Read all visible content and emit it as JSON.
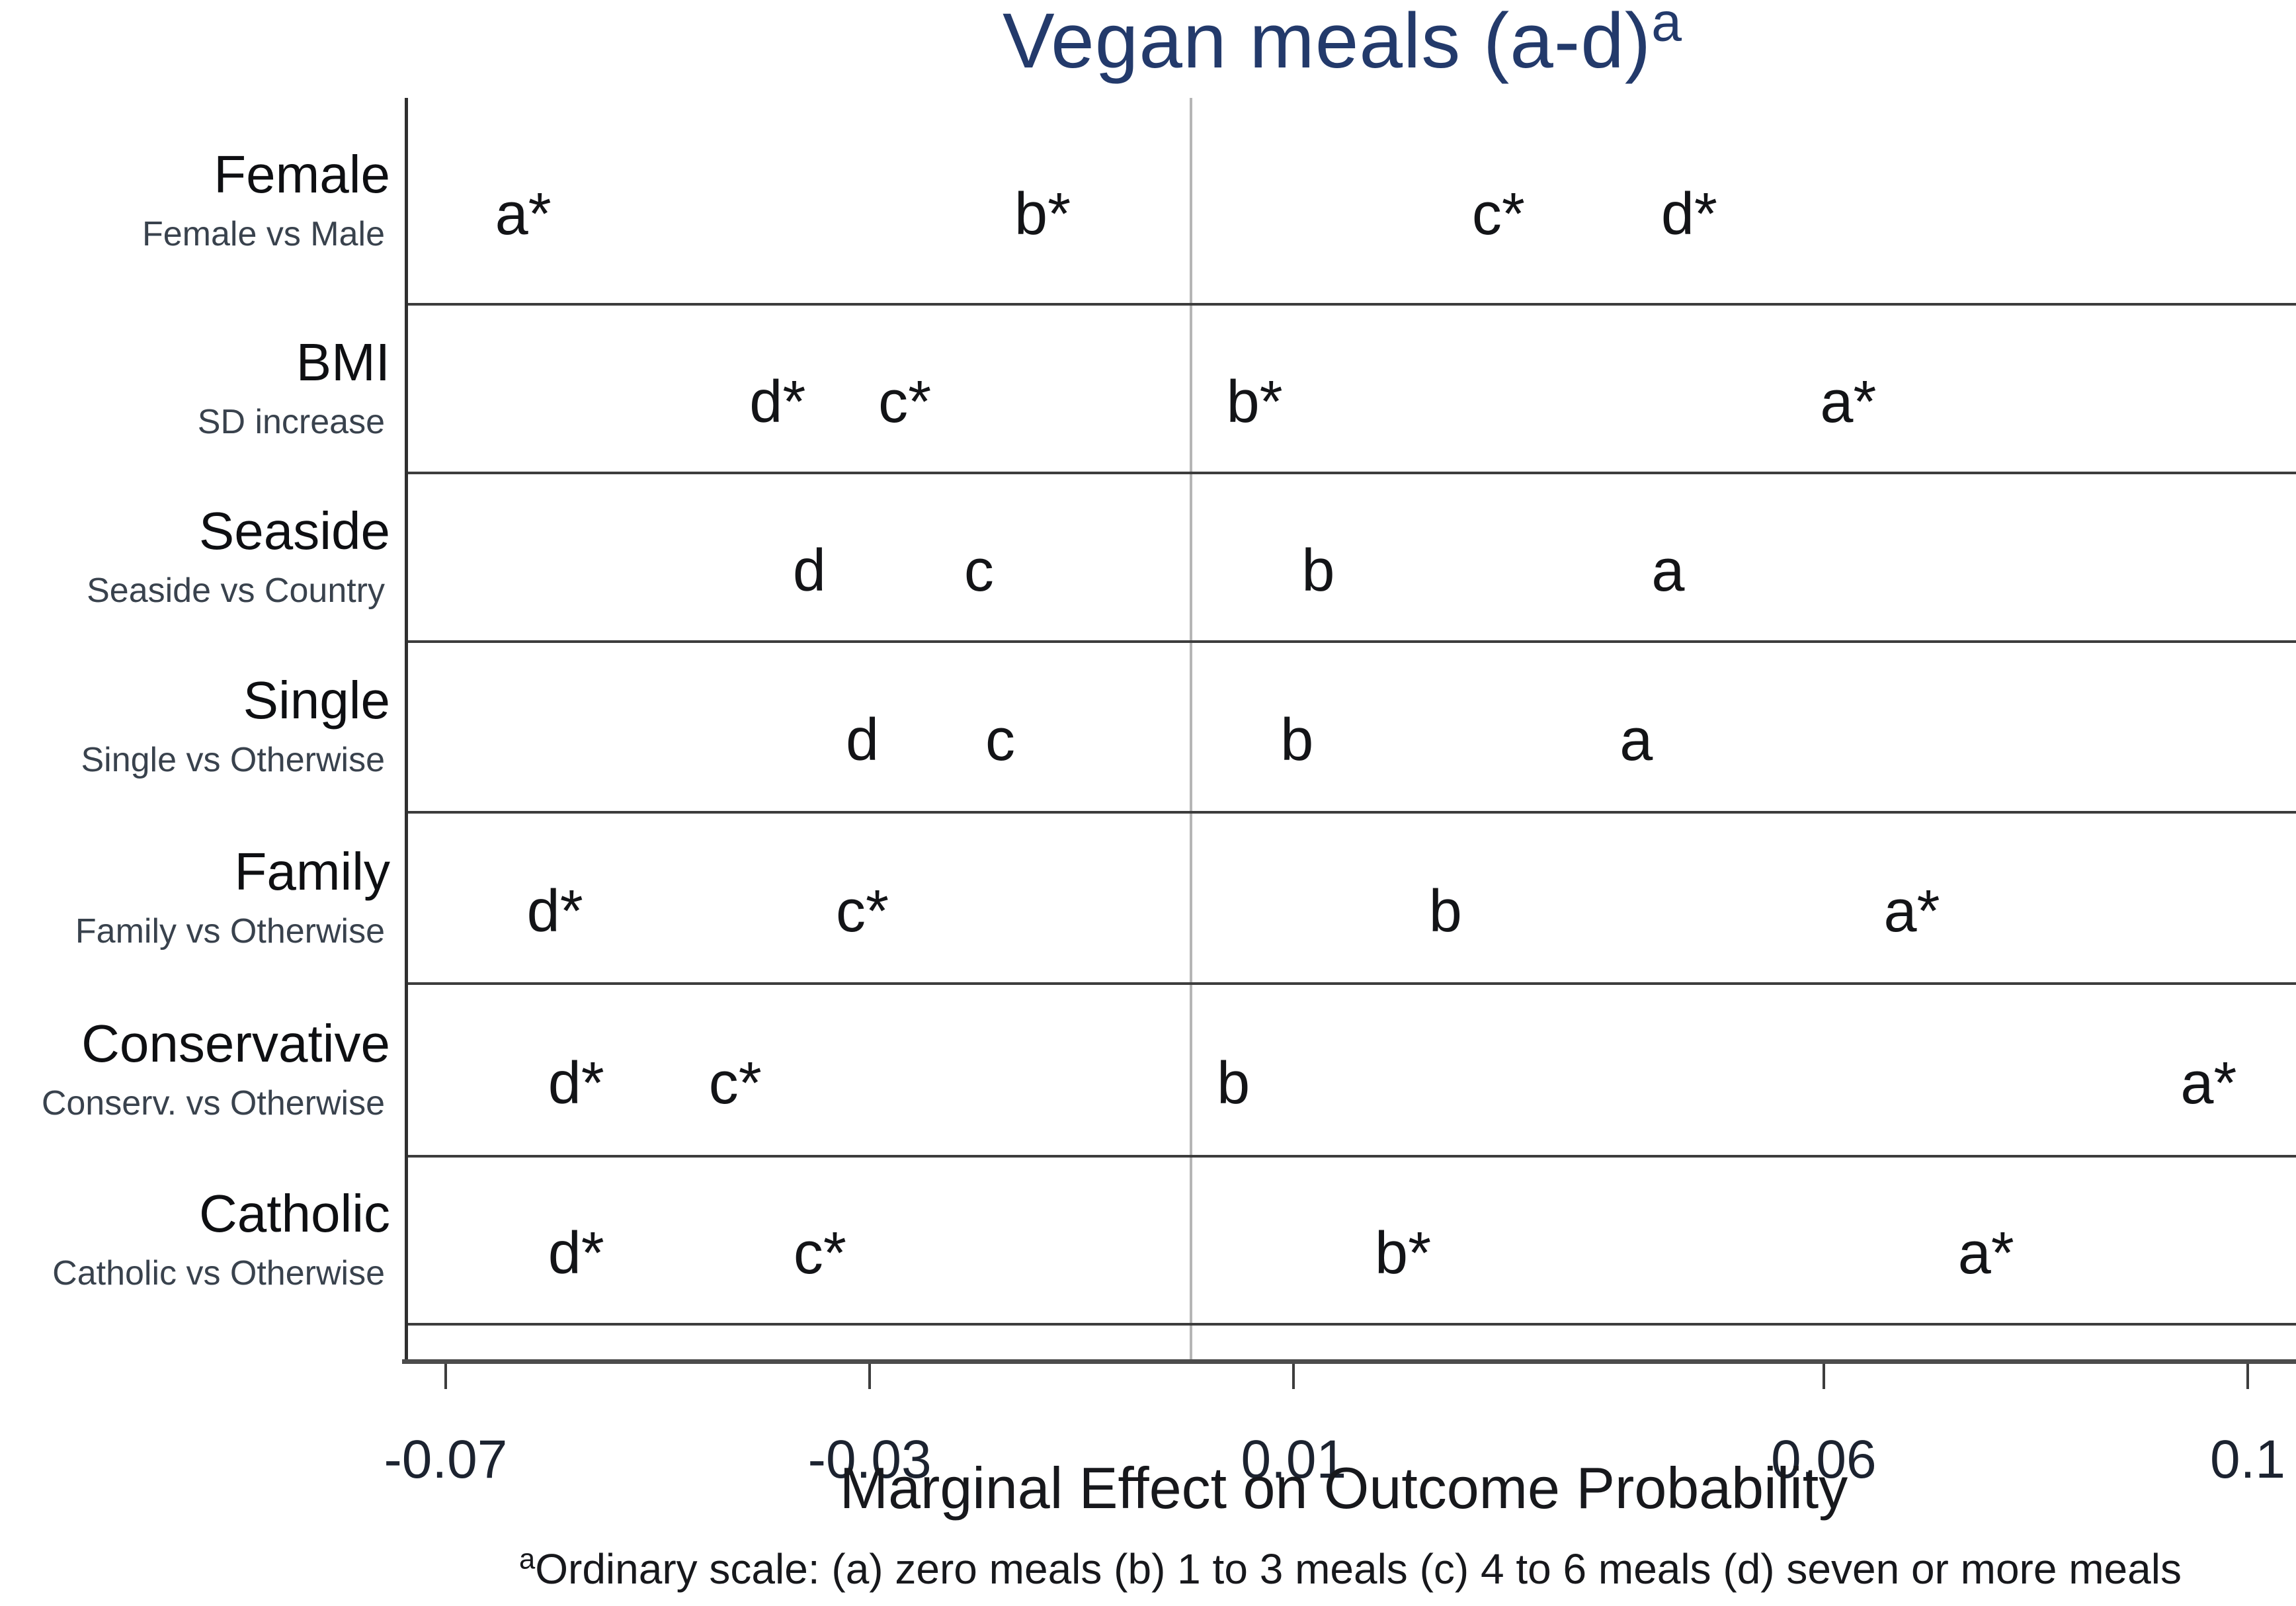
{
  "chart_data": {
    "type": "scatter",
    "title": "Vegan meals (a-d)",
    "title_superscript": "a",
    "xlabel": "Marginal Effect on Outcome Probability",
    "xlim": [
      -0.0739,
      0.1046
    ],
    "xticks": [
      -0.07,
      -0.03,
      0.01,
      0.06,
      0.1
    ],
    "xtick_labels": [
      "-0.07",
      "-0.03",
      "0.01",
      "0.06",
      "0.1"
    ],
    "reference_line_x": 0,
    "significance_marker": "*",
    "legend_position": "none",
    "grid": "row-dividers",
    "rows": [
      {
        "category": "Female",
        "contrast": "Female vs Male",
        "points": [
          {
            "label": "a",
            "sig": true,
            "x": -0.063
          },
          {
            "label": "b",
            "sig": true,
            "x": -0.014
          },
          {
            "label": "c",
            "sig": true,
            "x": 0.029
          },
          {
            "label": "d",
            "sig": true,
            "x": 0.047
          }
        ]
      },
      {
        "category": "BMI",
        "contrast": "SD increase",
        "points": [
          {
            "label": "a",
            "sig": true,
            "x": 0.062
          },
          {
            "label": "b",
            "sig": true,
            "x": 0.006
          },
          {
            "label": "c",
            "sig": true,
            "x": -0.027
          },
          {
            "label": "d",
            "sig": true,
            "x": -0.039
          }
        ]
      },
      {
        "category": "Seaside",
        "contrast": "Seaside vs Country",
        "points": [
          {
            "label": "a",
            "sig": false,
            "x": 0.045
          },
          {
            "label": "b",
            "sig": false,
            "x": 0.012
          },
          {
            "label": "c",
            "sig": false,
            "x": -0.02
          },
          {
            "label": "d",
            "sig": false,
            "x": -0.036
          }
        ]
      },
      {
        "category": "Single",
        "contrast": "Single vs Otherwise",
        "points": [
          {
            "label": "a",
            "sig": false,
            "x": 0.042
          },
          {
            "label": "b",
            "sig": false,
            "x": 0.01
          },
          {
            "label": "c",
            "sig": false,
            "x": -0.018
          },
          {
            "label": "d",
            "sig": false,
            "x": -0.031
          }
        ]
      },
      {
        "category": "Family",
        "contrast": "Family vs Otherwise",
        "points": [
          {
            "label": "a",
            "sig": true,
            "x": 0.068
          },
          {
            "label": "b",
            "sig": false,
            "x": 0.024
          },
          {
            "label": "c",
            "sig": true,
            "x": -0.031
          },
          {
            "label": "d",
            "sig": true,
            "x": -0.06
          }
        ]
      },
      {
        "category": "Conservative",
        "contrast": "Conserv. vs Otherwise",
        "points": [
          {
            "label": "a",
            "sig": true,
            "x": 0.096
          },
          {
            "label": "b",
            "sig": false,
            "x": 0.004
          },
          {
            "label": "c",
            "sig": true,
            "x": -0.043
          },
          {
            "label": "d",
            "sig": true,
            "x": -0.058
          }
        ]
      },
      {
        "category": "Catholic",
        "contrast": "Catholic vs Otherwise",
        "points": [
          {
            "label": "a",
            "sig": true,
            "x": 0.075
          },
          {
            "label": "b",
            "sig": true,
            "x": 0.02
          },
          {
            "label": "c",
            "sig": true,
            "x": -0.035
          },
          {
            "label": "d",
            "sig": true,
            "x": -0.058
          }
        ]
      }
    ],
    "footnote_superscript": "a",
    "footnote": "Ordinary scale: (a) zero meals (b) 1 to 3 meals (c) 4 to 6 meals (d) seven or more meals",
    "colors": {
      "title": "#233a6b",
      "marker_text": "#131417",
      "category_text": "#0e0f12",
      "contrast_text": "#39424d",
      "tick_text": "#1c2330",
      "axis_line": "#4c4c4c",
      "divider_line": "#3d3d3d",
      "zero_line": "#b5b5b5",
      "background": "#ffffff"
    }
  }
}
